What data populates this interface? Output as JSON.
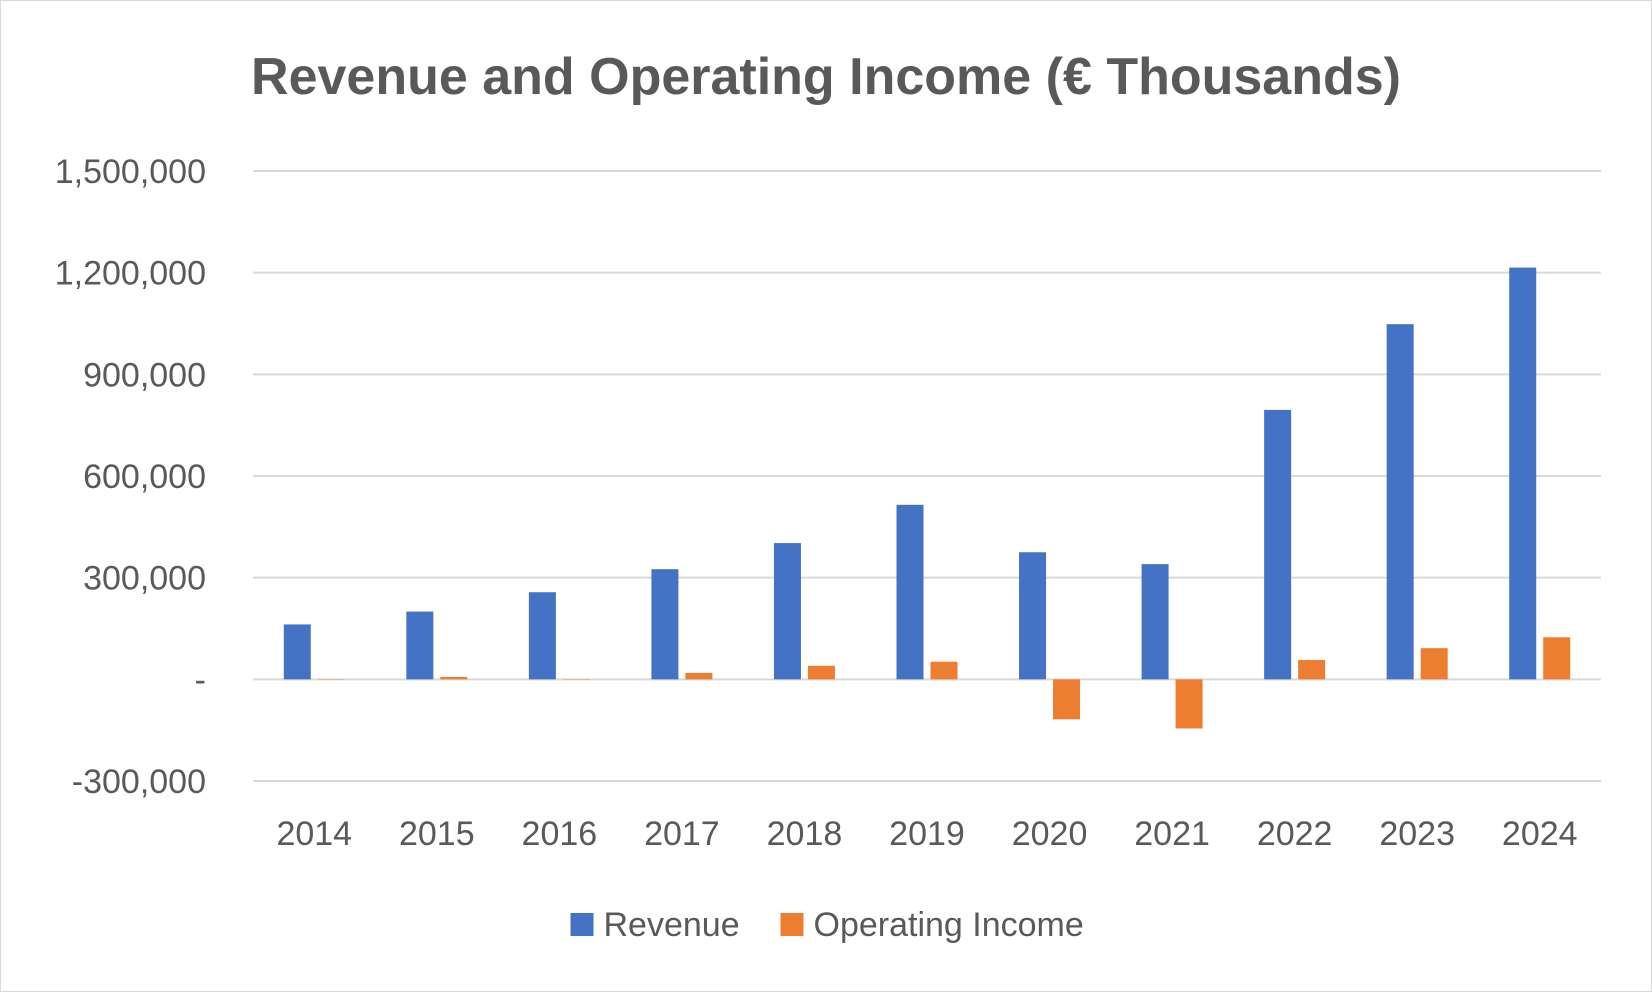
{
  "chart_data": {
    "type": "bar",
    "title": "Revenue and Operating Income (€ Thousands)",
    "xlabel": "",
    "ylabel": "",
    "categories": [
      "2014",
      "2015",
      "2016",
      "2017",
      "2018",
      "2019",
      "2020",
      "2021",
      "2022",
      "2023",
      "2024"
    ],
    "series": [
      {
        "name": "Revenue",
        "color": "#4472c4",
        "values": [
          162000,
          200000,
          257000,
          325000,
          402000,
          515000,
          375000,
          340000,
          795000,
          1048000,
          1215000
        ]
      },
      {
        "name": "Operating Income",
        "color": "#ed7d31",
        "values": [
          -1000,
          7000,
          -1000,
          19000,
          40000,
          52000,
          -118000,
          -145000,
          57000,
          92000,
          124000
        ]
      }
    ],
    "ylim": [
      -300000,
      1500000
    ],
    "yticks": [
      1500000,
      1200000,
      900000,
      600000,
      300000,
      0,
      -300000
    ],
    "ytick_labels": [
      "1,500,000",
      "1,200,000",
      "900,000",
      "600,000",
      "300,000",
      "-",
      "-300,000"
    ],
    "grid": true,
    "legend": "bottom",
    "gridline_color": "#d9d9d9",
    "text_color": "#595959"
  }
}
